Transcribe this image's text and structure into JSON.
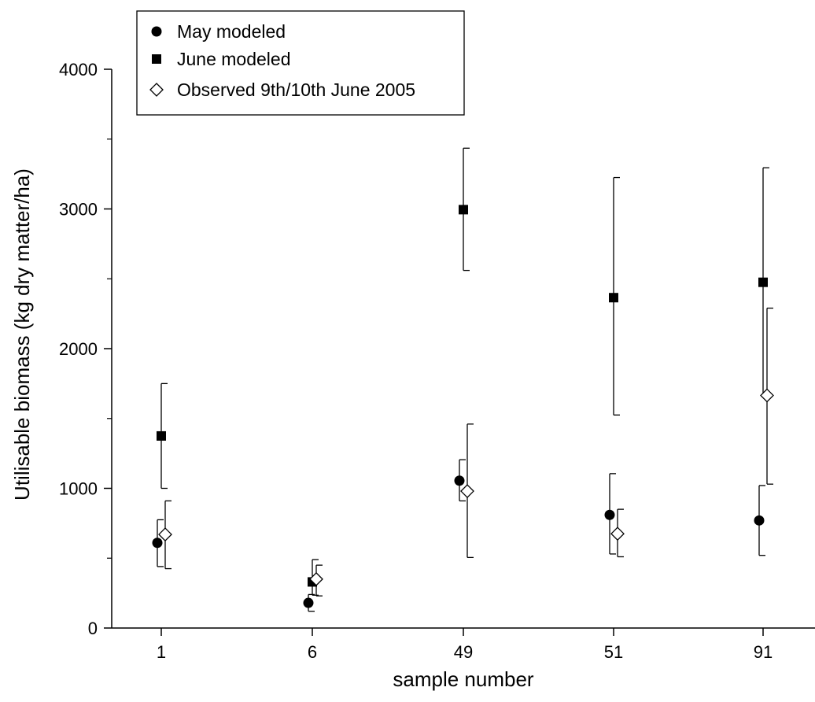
{
  "chart_data": {
    "type": "scatter",
    "xlabel": "sample number",
    "ylabel": "Utilisable biomass (kg dry matter/ha)",
    "categories": [
      "1",
      "6",
      "49",
      "51",
      "91"
    ],
    "ylim": [
      0,
      4000
    ],
    "yticks": [
      0,
      1000,
      2000,
      3000,
      4000
    ],
    "grid": false,
    "legend_position": "top-left",
    "series": [
      {
        "name": "May modeled",
        "marker": "filled-circle",
        "color": "#000000",
        "values": [
          610,
          180,
          1055,
          810,
          770
        ],
        "error_low": [
          440,
          120,
          910,
          530,
          520
        ],
        "error_high": [
          775,
          240,
          1205,
          1105,
          1020
        ]
      },
      {
        "name": "June modeled",
        "marker": "filled-square",
        "color": "#000000",
        "values": [
          1375,
          330,
          2995,
          2365,
          2475
        ],
        "error_low": [
          1000,
          235,
          2560,
          1525,
          1675
        ],
        "error_high": [
          1750,
          490,
          3435,
          3225,
          3295
        ]
      },
      {
        "name": "Observed 9th/10th June 2005",
        "marker": "open-diamond",
        "color": "#000000",
        "values": [
          670,
          350,
          980,
          675,
          1665
        ],
        "error_low": [
          425,
          230,
          505,
          510,
          1030
        ],
        "error_high": [
          910,
          450,
          1460,
          850,
          2290
        ]
      }
    ]
  }
}
